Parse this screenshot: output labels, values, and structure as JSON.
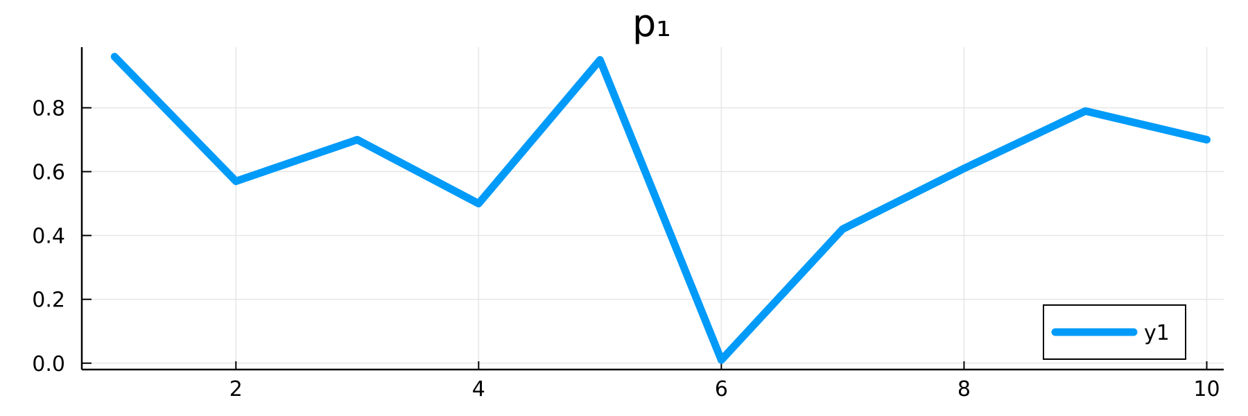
{
  "chart_data": {
    "type": "line",
    "title": "p₁",
    "xlabel": "",
    "ylabel": "",
    "x": [
      1,
      2,
      3,
      4,
      5,
      6,
      7,
      8,
      9,
      10
    ],
    "series": [
      {
        "name": "y1",
        "color": "#009af9",
        "values": [
          0.96,
          0.57,
          0.7,
          0.5,
          0.95,
          0.01,
          0.42,
          0.61,
          0.79,
          0.7
        ]
      }
    ],
    "xlim": [
      0.73,
      10.14
    ],
    "ylim": [
      -0.02,
      0.99
    ],
    "xticks": [
      2,
      4,
      6,
      8,
      10
    ],
    "xtick_labels": [
      "2",
      "4",
      "6",
      "8",
      "10"
    ],
    "yticks": [
      0.0,
      0.2,
      0.4,
      0.6,
      0.8
    ],
    "ytick_labels": [
      "0.0",
      "0.2",
      "0.4",
      "0.6",
      "0.8"
    ],
    "grid": true,
    "legend_position": "bottom-right"
  }
}
